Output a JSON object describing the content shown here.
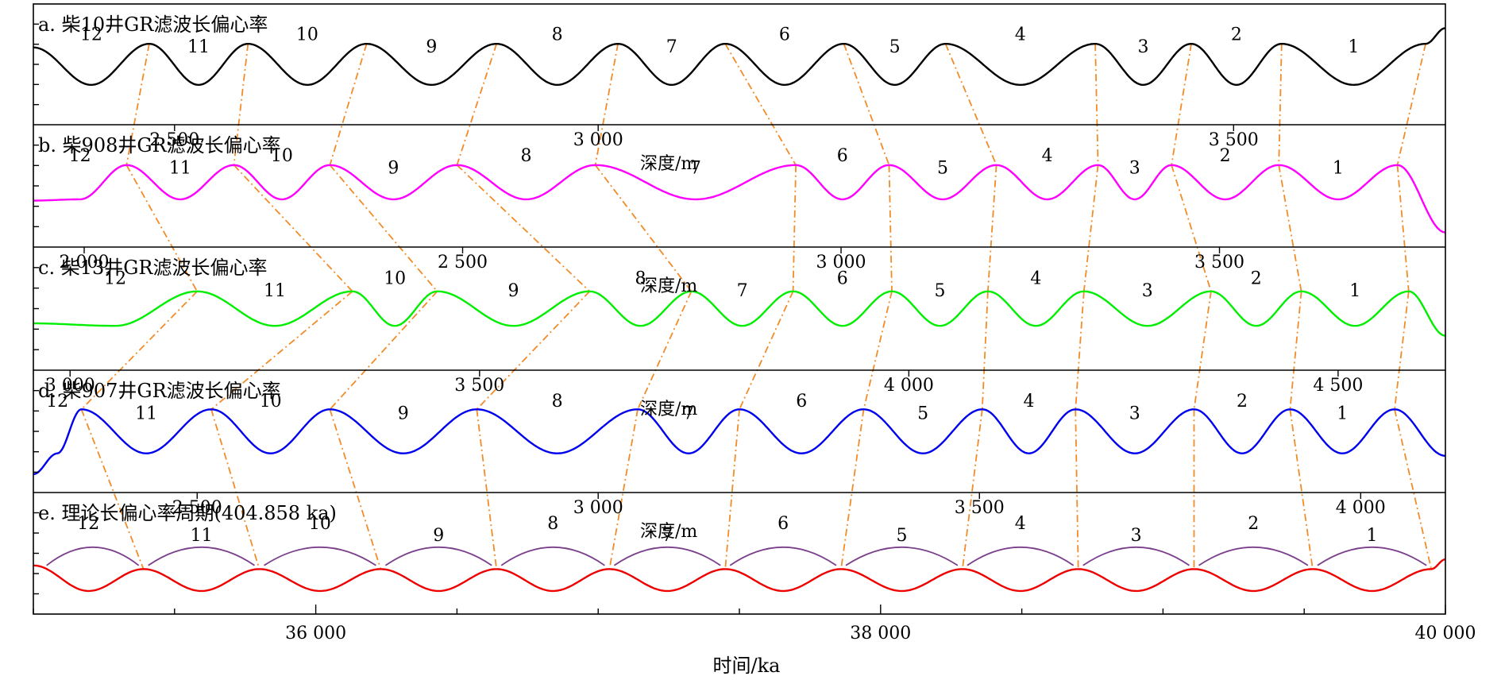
{
  "chart_data": {
    "type": "line",
    "xlabel": "时间/ka",
    "xlim": [
      35000,
      40000
    ],
    "xticks": [
      36000,
      38000,
      40000
    ],
    "xtick_labels": [
      "36 000",
      "38 000",
      "40 000"
    ],
    "panels": [
      {
        "id": "a",
        "title": "a. 柴10井GR滤波长偏心率",
        "color": "#000000",
        "boundaries": [
          35410,
          35760,
          36180,
          36640,
          37070,
          37450,
          37870,
          38230,
          38760,
          39100,
          39420,
          39930
        ],
        "cycle_labels": [
          "12",
          "11",
          "10",
          "9",
          "8",
          "7",
          "6",
          "5",
          "4",
          "3",
          "2",
          "1"
        ],
        "depth_ticks": [],
        "depth_unit": ""
      },
      {
        "id": "b",
        "title": "b. 柴908井GR滤波长偏心率",
        "color": "#FF00FF",
        "boundaries": [
          35330,
          35710,
          36050,
          36500,
          36990,
          37700,
          38030,
          38410,
          38770,
          39030,
          39410,
          39830
        ],
        "cycle_labels": [
          "12",
          "11",
          "10",
          "9",
          "8",
          "7",
          "6",
          "5",
          "4",
          "3",
          "2",
          "1"
        ],
        "depth_ticks": [
          {
            "value": 35500,
            "label": "2 500"
          },
          {
            "value": 37000,
            "label": "3 000"
          },
          {
            "value": 39250,
            "label": "3 500"
          }
        ],
        "depth_unit": "深度/m"
      },
      {
        "id": "c",
        "title": "c. 柴13井GR滤波长偏心率",
        "color": "#00EE00",
        "boundaries": [
          35580,
          36130,
          36430,
          36970,
          37330,
          37690,
          38040,
          38380,
          38720,
          39170,
          39490,
          39870
        ],
        "cycle_labels": [
          "12",
          "11",
          "10",
          "9",
          "8",
          "7",
          "6",
          "5",
          "4",
          "3",
          "2",
          "1"
        ],
        "depth_ticks": [
          {
            "value": 35180,
            "label": "2 000"
          },
          {
            "value": 36520,
            "label": "2 500"
          },
          {
            "value": 37860,
            "label": "3 000"
          },
          {
            "value": 39200,
            "label": "3 500"
          }
        ],
        "depth_unit": "深度/m"
      },
      {
        "id": "d",
        "title": "d. 柴907井GR滤波长偏心率",
        "color": "#0000EE",
        "boundaries": [
          35170,
          35630,
          36050,
          36570,
          37140,
          37500,
          37940,
          38360,
          38690,
          39110,
          39450,
          39820
        ],
        "cycle_labels": [
          "12",
          "11",
          "10",
          "9",
          "8",
          "7",
          "6",
          "5",
          "4",
          "3",
          "2",
          "1"
        ],
        "depth_ticks": [
          {
            "value": 35130,
            "label": "3 000"
          },
          {
            "value": 36580,
            "label": "3 500"
          },
          {
            "value": 38100,
            "label": "4 000"
          },
          {
            "value": 39620,
            "label": "4 500"
          }
        ],
        "depth_unit": "深度/m"
      },
      {
        "id": "e",
        "title": "e. 理论长偏心率周期(404.858 ka)",
        "color": "#EE0000",
        "arch_color": "#7B3F8C",
        "boundaries": [
          35390,
          35800,
          36230,
          36640,
          37040,
          37450,
          37860,
          38290,
          38700,
          39110,
          39530,
          39950
        ],
        "cycle_labels": [
          "12",
          "11",
          "10",
          "9",
          "8",
          "7",
          "6",
          "5",
          "4",
          "3",
          "2",
          "1"
        ],
        "depth_ticks": [
          {
            "value": 35580,
            "label": "2 500"
          },
          {
            "value": 37000,
            "label": "3 000"
          },
          {
            "value": 38350,
            "label": "3 500"
          },
          {
            "value": 39700,
            "label": "4 000"
          }
        ],
        "depth_unit": "深度/m"
      }
    ]
  }
}
